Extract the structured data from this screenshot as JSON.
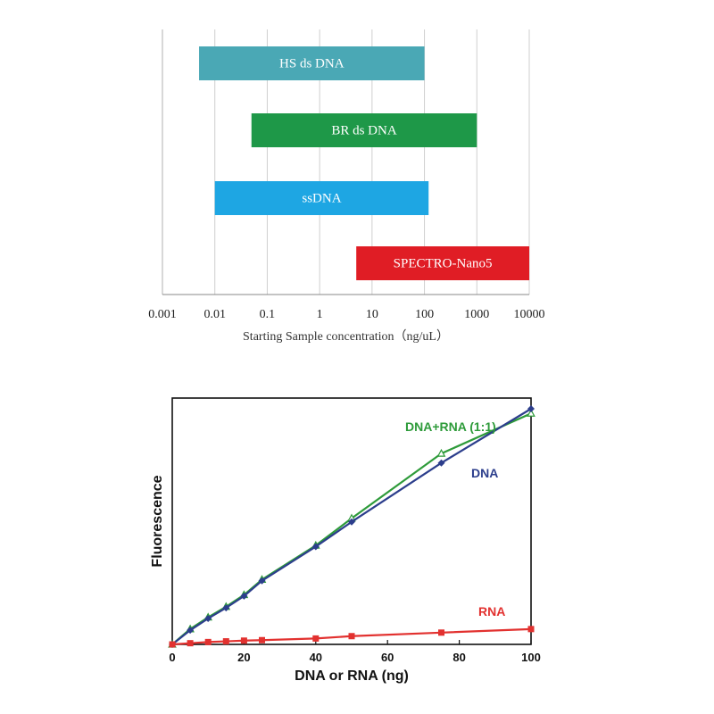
{
  "chart_data": [
    {
      "type": "bar",
      "orientation": "horizontal",
      "scale": "log",
      "title": "",
      "xlabel": "Starting Sample concentration（ng/uL）",
      "ylabel": "",
      "x_ticks": [
        "0.001",
        "0.01",
        "0.1",
        "1",
        "10",
        "100",
        "1000",
        "10000"
      ],
      "xlim": [
        0.001,
        10000
      ],
      "grid": "vertical",
      "series": [
        {
          "name": "HS ds DNA",
          "low": 0.005,
          "high": 100,
          "color": "#4aa8b5"
        },
        {
          "name": "BR ds DNA",
          "low": 0.05,
          "high": 1000,
          "color": "#1e9848"
        },
        {
          "name": "ssDNA",
          "low": 0.01,
          "high": 120,
          "color": "#1ea6e3"
        },
        {
          "name": "SPECTRO-Nano5",
          "low": 5,
          "high": 10000,
          "color": "#e01d25"
        }
      ]
    },
    {
      "type": "line",
      "title": "",
      "xlabel": "DNA or RNA (ng)",
      "ylabel": "Fluorescence",
      "xlim": [
        0,
        100
      ],
      "ylim": [
        0,
        100
      ],
      "x_ticks": [
        "0",
        "20",
        "40",
        "60",
        "80",
        "100"
      ],
      "y_ticks": [],
      "grid": false,
      "series": [
        {
          "name": "DNA+RNA (1:1)",
          "color": "#2e9b3a",
          "x": [
            0,
            5,
            10,
            15,
            20,
            25,
            40,
            50,
            75,
            100
          ],
          "y": [
            0,
            6.5,
            11.5,
            16,
            21,
            27.5,
            42,
            53.5,
            81,
            98
          ]
        },
        {
          "name": "DNA",
          "color": "#2c3e8c",
          "x": [
            0,
            5,
            10,
            15,
            20,
            25,
            40,
            50,
            75,
            100
          ],
          "y": [
            0,
            6,
            11,
            15.5,
            20.5,
            27,
            41.5,
            52,
            77,
            100
          ]
        },
        {
          "name": "RNA",
          "color": "#e2312f",
          "x": [
            0,
            5,
            10,
            15,
            20,
            25,
            40,
            50,
            75,
            100
          ],
          "y": [
            0,
            0.5,
            1,
            1.3,
            1.6,
            1.8,
            2.5,
            3.5,
            5,
            6.5
          ]
        }
      ]
    }
  ]
}
